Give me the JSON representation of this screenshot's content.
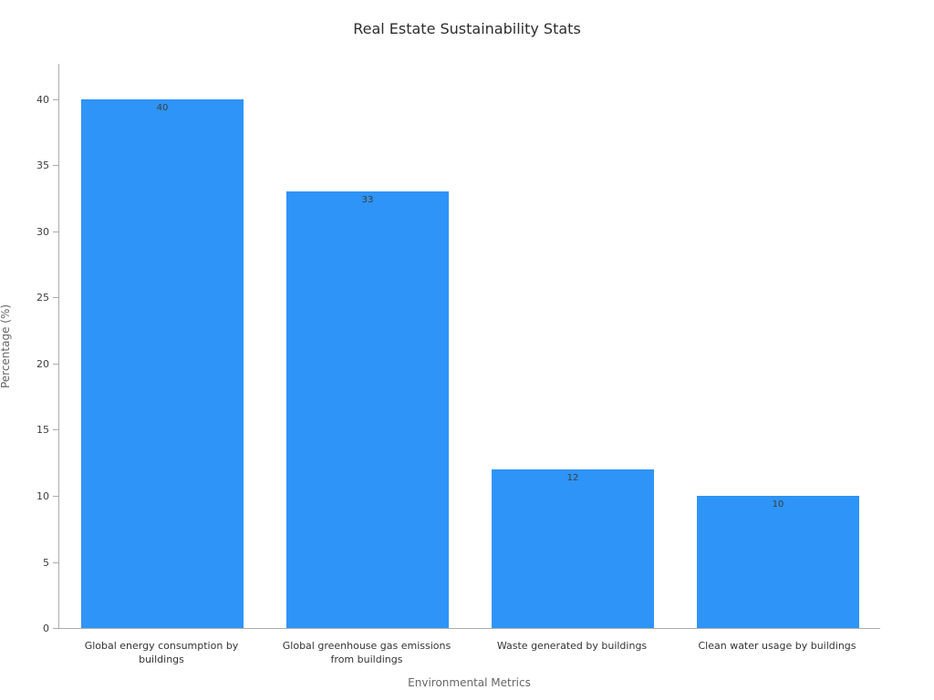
{
  "chart_data": {
    "type": "bar",
    "title": "Real Estate Sustainability Stats",
    "xlabel": "Environmental Metrics",
    "ylabel": "Percentage (%)",
    "categories": [
      "Global energy consumption by buildings",
      "Global greenhouse gas emissions from buildings",
      "Waste generated by buildings",
      "Clean water usage by buildings"
    ],
    "values": [
      40,
      33,
      12,
      10
    ],
    "value_labels": [
      "40",
      "33",
      "12",
      "10"
    ],
    "yticks": [
      0,
      5,
      10,
      15,
      20,
      25,
      30,
      35,
      40
    ],
    "ylim": [
      0,
      42.75
    ],
    "grid": false,
    "legend": "none",
    "bar_color": "#2E94F7",
    "title_color": "#2d2d2d",
    "axis_label_color": "#666666",
    "tick_label_color": "#3d3d3d"
  }
}
